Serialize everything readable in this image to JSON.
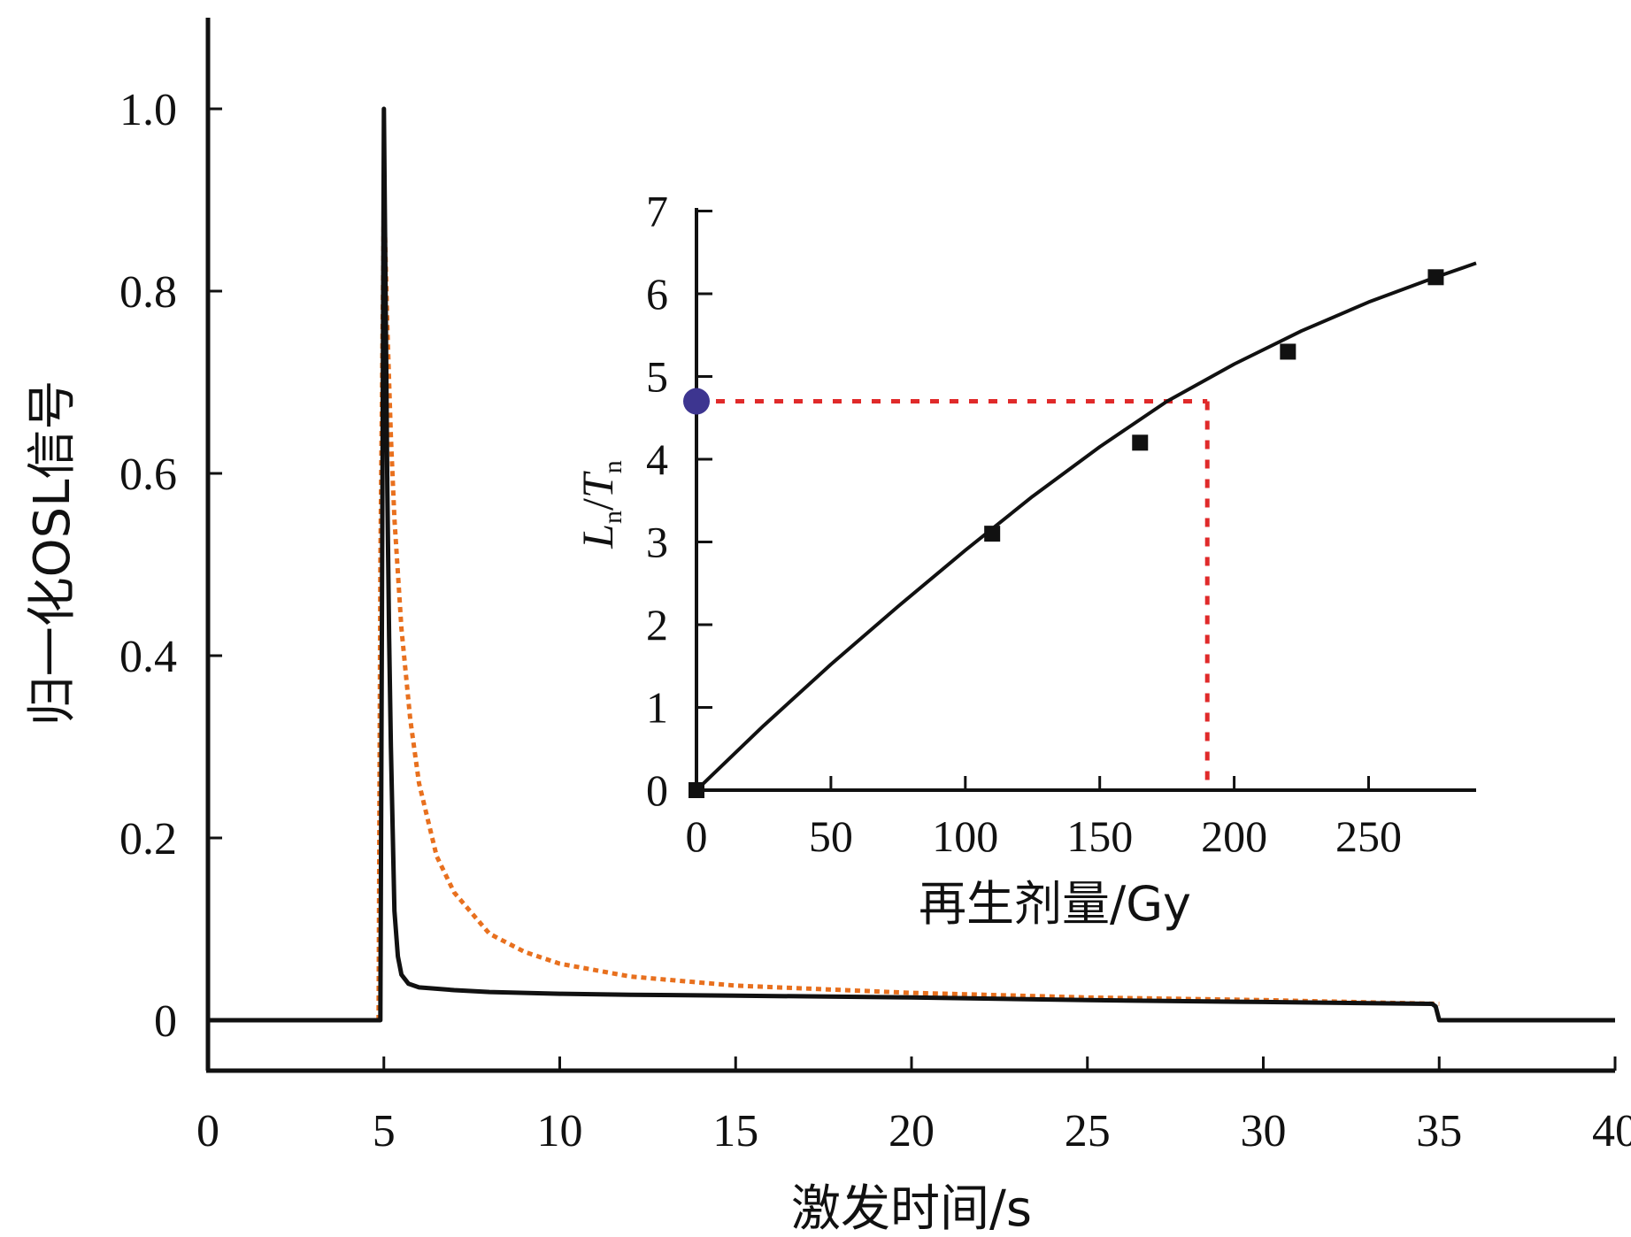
{
  "chart_data": [
    {
      "type": "line",
      "xlabel": "激发时间/s",
      "ylabel": "归一化OSL信号",
      "xlim": [
        0,
        40
      ],
      "ylim": [
        -0.05,
        1.1
      ],
      "xticks": [
        0,
        5,
        10,
        15,
        20,
        25,
        30,
        35,
        40
      ],
      "xtick_labels": [
        "0",
        "5",
        "10",
        "15",
        "20",
        "25",
        "30",
        "35",
        "40"
      ],
      "yticks": [
        0,
        0.2,
        0.4,
        0.6,
        0.8,
        1.0
      ],
      "ytick_labels": [
        "0",
        "0.2",
        "0.4",
        "0.6",
        "0.8",
        "1.0"
      ],
      "grid": false,
      "series": [
        {
          "style": "solid",
          "color": "#111111",
          "x": [
            0,
            4.9,
            4.95,
            5.0,
            5.05,
            5.1,
            5.15,
            5.2,
            5.25,
            5.3,
            5.4,
            5.5,
            5.7,
            6,
            7,
            8,
            10,
            12,
            15,
            20,
            25,
            30,
            34.8,
            34.9,
            35.0,
            40
          ],
          "y": [
            0,
            0,
            0.5,
            1.0,
            0.8,
            0.58,
            0.42,
            0.3,
            0.21,
            0.12,
            0.07,
            0.05,
            0.04,
            0.036,
            0.033,
            0.031,
            0.029,
            0.028,
            0.027,
            0.025,
            0.022,
            0.02,
            0.018,
            0.015,
            0.0,
            0
          ]
        },
        {
          "style": "dotted",
          "color": "#e8701e",
          "x": [
            4.85,
            4.9,
            5.0,
            5.1,
            5.2,
            5.3,
            5.5,
            5.75,
            6,
            6.5,
            7,
            8,
            9,
            10,
            12,
            15,
            20,
            25,
            30,
            35
          ],
          "y": [
            0.0,
            0.5,
            0.91,
            0.76,
            0.64,
            0.55,
            0.43,
            0.33,
            0.26,
            0.18,
            0.14,
            0.095,
            0.075,
            0.062,
            0.048,
            0.038,
            0.03,
            0.025,
            0.022,
            0.018
          ]
        }
      ]
    },
    {
      "type": "scatter",
      "xlabel": "再生剂量/Gy",
      "ylabel_main": "L",
      "ylabel_sub": "n",
      "ylabel_sep": "/",
      "ylabel_main2": "T",
      "ylabel_sub2": "n",
      "xlim": [
        0,
        290
      ],
      "ylim": [
        0,
        7
      ],
      "xticks": [
        0,
        50,
        100,
        150,
        200,
        250
      ],
      "xtick_labels": [
        "0",
        "50",
        "100",
        "150",
        "200",
        "250"
      ],
      "yticks": [
        0,
        1,
        2,
        3,
        4,
        5,
        6,
        7
      ],
      "ytick_labels": [
        "0",
        "1",
        "2",
        "3",
        "4",
        "5",
        "6",
        "7"
      ],
      "grid": false,
      "points": {
        "x": [
          0,
          110,
          165,
          220,
          275
        ],
        "y": [
          0,
          3.1,
          4.2,
          5.3,
          6.2
        ]
      },
      "fit_curve": {
        "x": [
          0,
          25,
          50,
          75,
          100,
          125,
          150,
          175,
          200,
          225,
          250,
          275,
          290
        ],
        "y": [
          0,
          0.78,
          1.52,
          2.22,
          2.9,
          3.55,
          4.15,
          4.7,
          5.15,
          5.55,
          5.9,
          6.2,
          6.37
        ]
      },
      "equivalent_dose": {
        "x": 190,
        "y": 4.7
      },
      "colors": {
        "points": "#111111",
        "curve": "#111111",
        "guide": "#e02a2a",
        "marker": "#3d3590"
      }
    }
  ]
}
